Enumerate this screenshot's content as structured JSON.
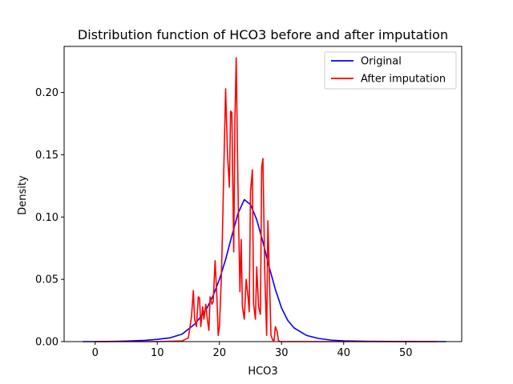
{
  "chart_data": {
    "type": "line",
    "title": "Distribution function of HCO3 before and after imputation",
    "xlabel": "HCO3",
    "ylabel": "Density",
    "xlim": [
      -5,
      59
    ],
    "ylim": [
      0,
      0.237
    ],
    "xticks": [
      0,
      10,
      20,
      30,
      40,
      50
    ],
    "xtick_labels": [
      "0",
      "10",
      "20",
      "30",
      "40",
      "50"
    ],
    "yticks": [
      0.0,
      0.05,
      0.1,
      0.15,
      0.2
    ],
    "ytick_labels": [
      "0.00",
      "0.05",
      "0.10",
      "0.15",
      "0.20"
    ],
    "grid": false,
    "legend": "top-right",
    "series": [
      {
        "name": "Original",
        "color": "#0000ff",
        "x": [
          -2,
          0,
          2,
          4,
          6,
          8,
          10,
          12,
          14,
          16,
          17,
          18,
          19,
          20,
          21,
          22,
          23,
          24,
          25,
          26,
          27,
          28,
          29,
          30,
          31,
          32,
          34,
          36,
          38,
          40,
          44,
          48,
          52,
          56.5
        ],
        "y": [
          0,
          0,
          0.0001,
          0.0003,
          0.0006,
          0.001,
          0.0018,
          0.003,
          0.006,
          0.014,
          0.02,
          0.027,
          0.037,
          0.05,
          0.066,
          0.085,
          0.103,
          0.114,
          0.11,
          0.098,
          0.08,
          0.06,
          0.042,
          0.027,
          0.017,
          0.011,
          0.005,
          0.0025,
          0.0012,
          0.0006,
          0.0002,
          0.0001,
          0,
          0
        ]
      },
      {
        "name": "After imputation",
        "color": "#ff0000",
        "x": [
          0,
          5,
          10,
          14,
          15,
          15.5,
          15.8,
          16,
          16.3,
          16.6,
          16.8,
          17,
          17.3,
          17.5,
          17.8,
          18,
          18.3,
          18.5,
          18.8,
          19,
          19.3,
          19.6,
          19.8,
          20,
          20.3,
          20.5,
          20.8,
          21,
          21.3,
          21.6,
          21.8,
          22,
          22.3,
          22.5,
          22.7,
          23,
          23.3,
          23.5,
          23.7,
          24,
          24.3,
          24.6,
          24.8,
          25,
          25.3,
          25.5,
          25.8,
          26,
          26.3,
          26.6,
          26.8,
          27,
          27.3,
          27.6,
          27.8,
          28,
          28.3,
          28.6,
          28.8,
          29,
          29.3,
          29.5,
          29.7,
          30,
          30.3,
          30.6,
          30.8,
          31,
          31.3,
          31.6,
          32,
          32.5,
          32.8,
          33,
          33.3,
          33.6,
          34,
          35,
          37,
          40,
          45,
          50,
          55
        ],
        "y": [
          0,
          0,
          0,
          0.0005,
          0.003,
          0.02,
          0.041,
          0.018,
          0.012,
          0.036,
          0.035,
          0.012,
          0.028,
          0.018,
          0.03,
          0.02,
          0.009,
          0.036,
          0.03,
          0.032,
          0.065,
          0.035,
          0.005,
          0.012,
          0.05,
          0.09,
          0.16,
          0.203,
          0.15,
          0.124,
          0.185,
          0.184,
          0.072,
          0.18,
          0.228,
          0.12,
          0.04,
          0.082,
          0.028,
          0.018,
          0.05,
          0.036,
          0.024,
          0.12,
          0.138,
          0.03,
          0.018,
          0.06,
          0.028,
          0.022,
          0.14,
          0.147,
          0.055,
          0.005,
          0.097,
          0.06,
          0.005,
          0.001,
          0.001,
          0.012,
          0.008,
          0.001,
          0,
          0,
          0,
          0,
          0,
          0,
          0,
          0,
          0,
          0,
          0,
          0,
          0,
          0,
          0,
          0,
          0,
          0,
          0,
          0,
          0
        ]
      }
    ]
  }
}
